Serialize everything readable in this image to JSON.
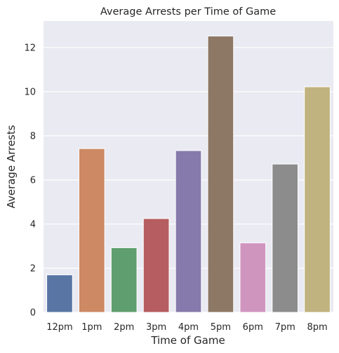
{
  "chart_data": {
    "type": "bar",
    "title": "Average Arrests per Time of Game",
    "xlabel": "Time of Game",
    "ylabel": "Average Arrests",
    "categories": [
      "12pm",
      "1pm",
      "2pm",
      "3pm",
      "4pm",
      "5pm",
      "6pm",
      "7pm",
      "8pm"
    ],
    "values": [
      1.7,
      7.42,
      2.93,
      4.25,
      7.33,
      12.52,
      3.15,
      6.72,
      10.22
    ],
    "colors": [
      "#5875a4",
      "#cc8963",
      "#5f9e6e",
      "#b55d60",
      "#857aab",
      "#8d7866",
      "#d095bf",
      "#8c8c8c",
      "#c1b37f"
    ],
    "yticks": [
      0,
      2,
      4,
      6,
      8,
      10,
      12
    ],
    "ylim": [
      0,
      13.2
    ],
    "grid": true,
    "background": "#eaeaf2"
  }
}
